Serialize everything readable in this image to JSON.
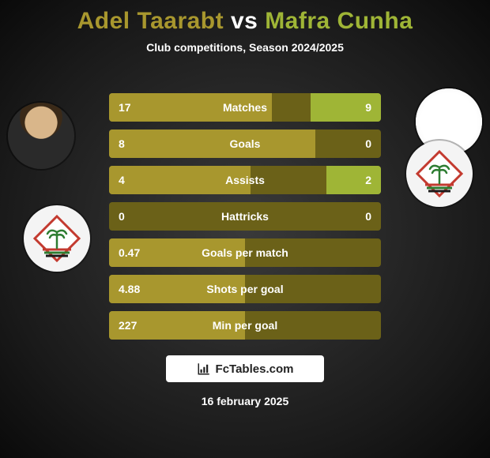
{
  "title": {
    "player_a": "Adel Taarabt",
    "vs": "vs",
    "player_b": "Mafra Cunha",
    "color_a": "#a8972e",
    "color_b": "#9fb536"
  },
  "subtitle": "Club competitions, Season 2024/2025",
  "colors": {
    "bar_a": "#a8972e",
    "bar_b": "#9fb536",
    "row_bg": "#6b6118"
  },
  "metrics": [
    {
      "label": "Matches",
      "a": "17",
      "b": "9",
      "fill_a_pct": 60,
      "fill_b_pct": 26
    },
    {
      "label": "Goals",
      "a": "8",
      "b": "0",
      "fill_a_pct": 76,
      "fill_b_pct": 0
    },
    {
      "label": "Assists",
      "a": "4",
      "b": "2",
      "fill_a_pct": 52,
      "fill_b_pct": 20
    },
    {
      "label": "Hattricks",
      "a": "0",
      "b": "0",
      "fill_a_pct": 0,
      "fill_b_pct": 0
    },
    {
      "label": "Goals per match",
      "a": "0.47",
      "b": "",
      "fill_a_pct": 50,
      "fill_b_pct": 0
    },
    {
      "label": "Shots per goal",
      "a": "4.88",
      "b": "",
      "fill_a_pct": 50,
      "fill_b_pct": 0
    },
    {
      "label": "Min per goal",
      "a": "227",
      "b": "",
      "fill_a_pct": 50,
      "fill_b_pct": 0
    }
  ],
  "watermark": "FcTables.com",
  "date": "16 february 2025",
  "badge": {
    "diamond_fill": "#ffffff",
    "diamond_stroke": "#c33a2f",
    "palm_color": "#2e7d32",
    "stripes": [
      "#c33a2f",
      "#2e7d32",
      "#1a1a1a"
    ]
  }
}
